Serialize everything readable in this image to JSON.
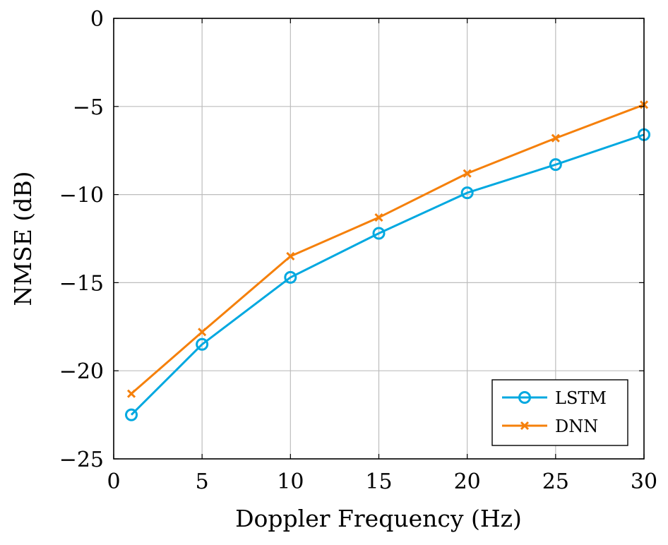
{
  "chart_data": {
    "type": "line",
    "title": "",
    "xlabel": "Doppler Frequency (Hz)",
    "ylabel": "NMSE (dB)",
    "xlim": [
      0,
      30
    ],
    "ylim": [
      -25,
      0
    ],
    "xticks": [
      0,
      5,
      10,
      15,
      20,
      25,
      30
    ],
    "yticks": [
      0,
      -5,
      -10,
      -15,
      -20,
      -25
    ],
    "xtick_labels": [
      "0",
      "5",
      "10",
      "15",
      "20",
      "25",
      "30"
    ],
    "ytick_labels": [
      "0",
      "−5",
      "−10",
      "−15",
      "−20",
      "−25"
    ],
    "grid": true,
    "legend_position": "bottom-right",
    "series": [
      {
        "name": "LSTM",
        "color": "#00a8e0",
        "marker": "circle",
        "x": [
          1,
          5,
          10,
          15,
          20,
          25,
          30
        ],
        "y": [
          -22.5,
          -18.5,
          -14.7,
          -12.2,
          -9.9,
          -8.3,
          -6.6
        ]
      },
      {
        "name": "DNN",
        "color": "#f5800b",
        "marker": "x",
        "x": [
          1,
          5,
          10,
          15,
          20,
          25,
          30
        ],
        "y": [
          -21.3,
          -17.8,
          -13.5,
          -11.3,
          -8.8,
          -6.8,
          -4.9
        ]
      }
    ]
  }
}
